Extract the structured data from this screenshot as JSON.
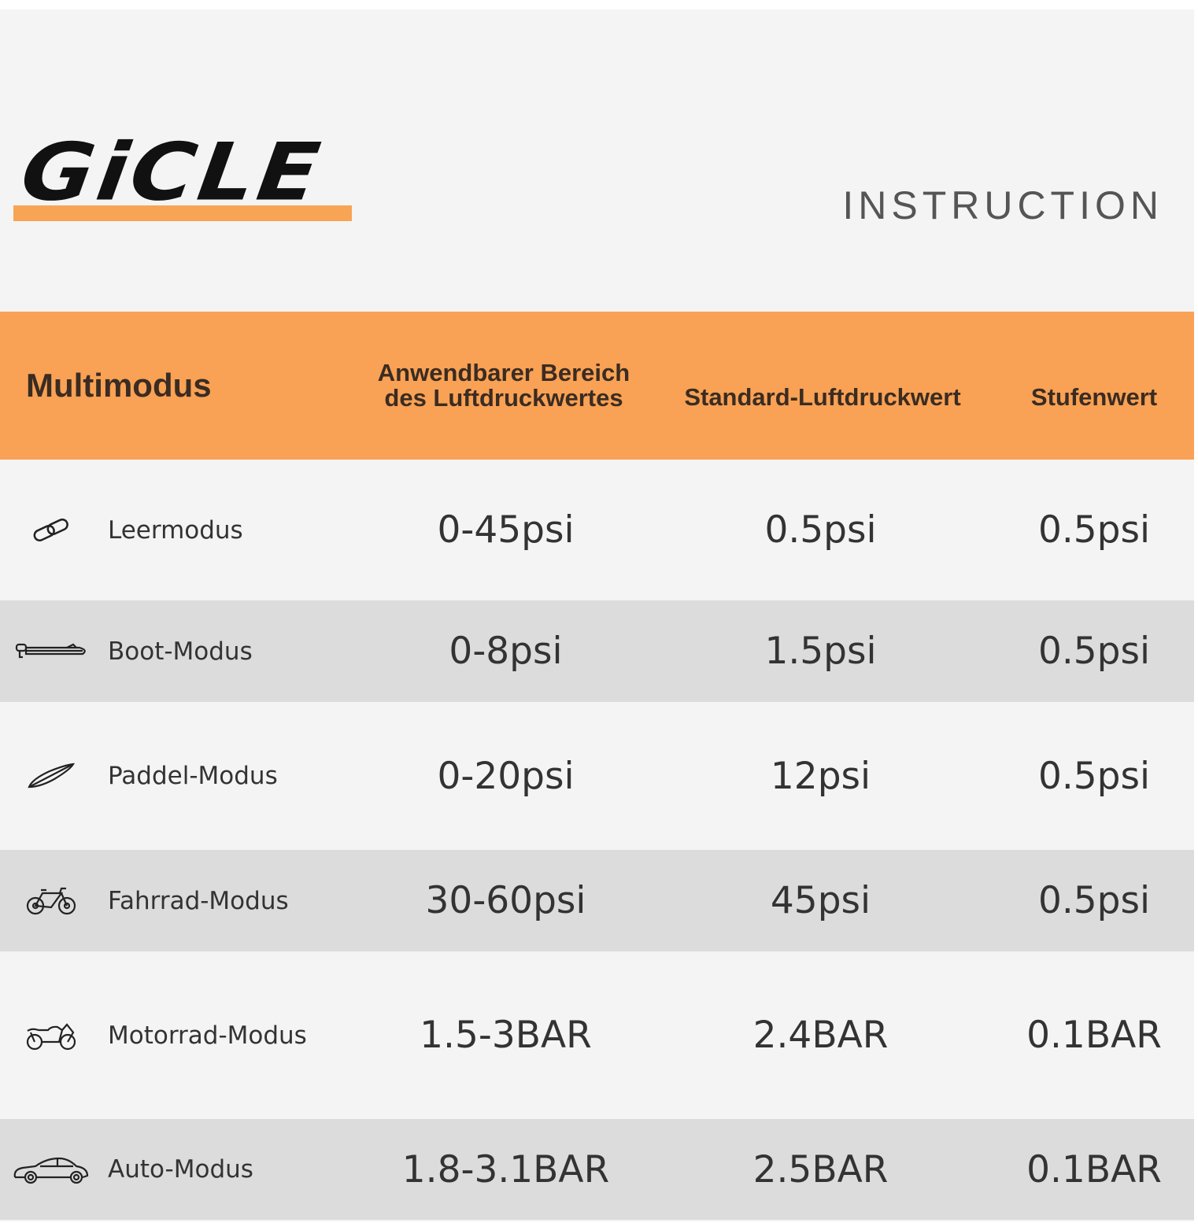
{
  "brand": {
    "logo_text": "GiCLE",
    "accent": "#f9a154"
  },
  "title": "INSTRUCTION",
  "table": {
    "headers": [
      "Multimodus",
      "Anwendbarer Bereich des Luftdruckwertes",
      "Standard-Luftdruckwert",
      "Stufenwert"
    ],
    "rows": [
      {
        "icon": "link-icon",
        "mode": "Leermodus",
        "range": "0-45psi",
        "standard": "0.5psi",
        "step": "0.5psi"
      },
      {
        "icon": "boat-icon",
        "mode": "Boot-Modus",
        "range": "0-8psi",
        "standard": "1.5psi",
        "step": "0.5psi"
      },
      {
        "icon": "paddleboard-icon",
        "mode": "Paddel-Modus",
        "range": "0-20psi",
        "standard": "12psi",
        "step": "0.5psi"
      },
      {
        "icon": "bicycle-icon",
        "mode": "Fahrrad-Modus",
        "range": "30-60psi",
        "standard": "45psi",
        "step": "0.5psi"
      },
      {
        "icon": "motorcycle-icon",
        "mode": "Motorrad-Modus",
        "range": "1.5-3BAR",
        "standard": "2.4BAR",
        "step": "0.1BAR"
      },
      {
        "icon": "car-icon",
        "mode": "Auto-Modus",
        "range": "1.8-3.1BAR",
        "standard": "2.5BAR",
        "step": "0.1BAR"
      }
    ]
  }
}
